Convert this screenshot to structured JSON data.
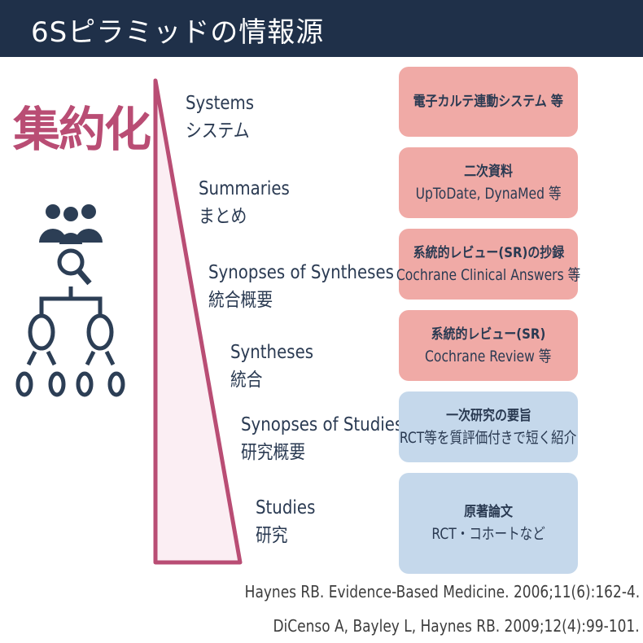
{
  "header": {
    "title": "6Sピラミッドの情報源"
  },
  "side_label": "集約化",
  "colors": {
    "header_bg": "#1f3049",
    "accent": "#b94d74",
    "pink_box": "#f0aaa6",
    "blue_box": "#c5d8eb",
    "icon": "#2c3e55"
  },
  "icon": "people-search-hierarchy-icon",
  "levels": [
    {
      "en": "Systems",
      "ja": "システム"
    },
    {
      "en": "Summaries",
      "ja": "まとめ"
    },
    {
      "en": "Synopses of Syntheses",
      "ja": "統合概要"
    },
    {
      "en": "Syntheses",
      "ja": "統合"
    },
    {
      "en": "Synopses of Studies",
      "ja": "研究概要"
    },
    {
      "en": "Studies",
      "ja": "研究"
    }
  ],
  "boxes": [
    {
      "title": "電子カルテ連動システム 等",
      "sub": ""
    },
    {
      "title": "二次資料",
      "sub": "UpToDate, DynaMed 等"
    },
    {
      "title": "系統的レビュー(SR)の抄録",
      "sub": "Cochrane Clinical Answers 等"
    },
    {
      "title": "系統的レビュー(SR)",
      "sub": "Cochrane Review 等"
    },
    {
      "title": "一次研究の要旨",
      "sub": "RCT等を質評価付きで短く紹介"
    },
    {
      "title": "原著論文",
      "sub": "RCT・コホートなど"
    }
  ],
  "citations": [
    "Haynes RB. Evidence-Based Medicine. 2006;11(6):162-4.",
    "DiCenso A, Bayley L, Haynes RB.  2009;12(4):99-101."
  ]
}
